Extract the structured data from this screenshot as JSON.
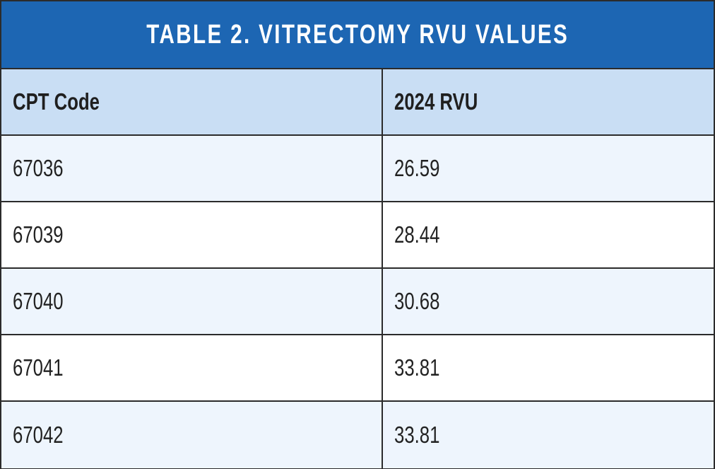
{
  "title": "TABLE 2. VITRECTOMY RVU VALUES",
  "columns": [
    "CPT Code",
    "2024 RVU"
  ],
  "rows": [
    {
      "code": "67036",
      "rvu": "26.59"
    },
    {
      "code": "67039",
      "rvu": "28.44"
    },
    {
      "code": "67040",
      "rvu": "30.68"
    },
    {
      "code": "67041",
      "rvu": "33.81"
    },
    {
      "code": "67042",
      "rvu": "33.81"
    }
  ],
  "colors": {
    "title_background": "#1d66b3",
    "header_background": "#c9def4",
    "row_light": "#eef5fd",
    "row_white": "#ffffff",
    "border": "#2b2b2b"
  }
}
